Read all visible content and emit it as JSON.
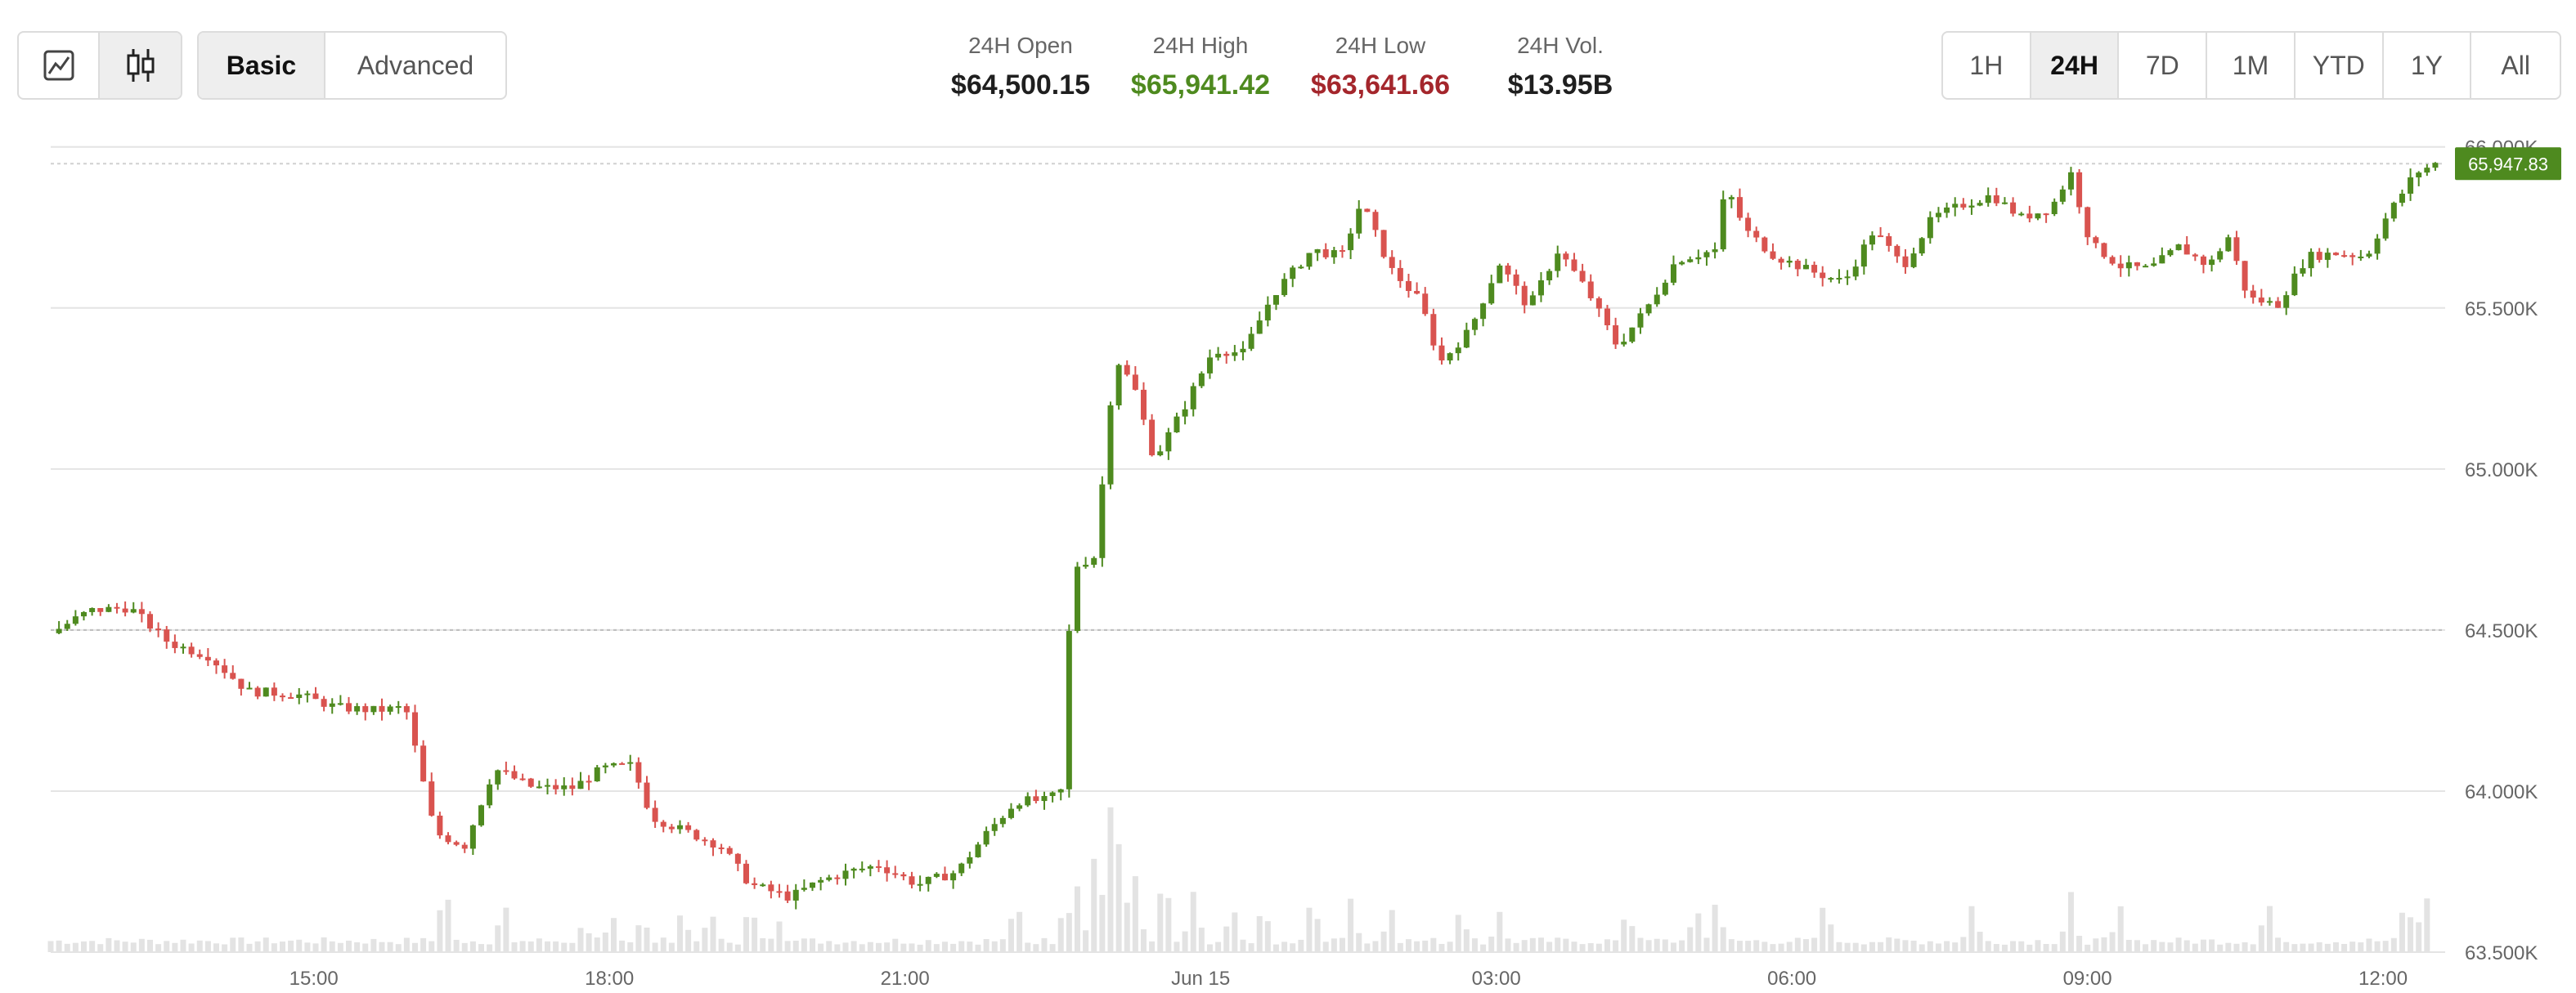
{
  "toolbar": {
    "chart_type": [
      {
        "name": "line-chart-icon",
        "active": false
      },
      {
        "name": "candlestick-icon",
        "active": true
      }
    ],
    "mode": [
      {
        "label": "Basic",
        "active": true
      },
      {
        "label": "Advanced",
        "active": false
      }
    ],
    "ranges": [
      {
        "label": "1H",
        "active": false
      },
      {
        "label": "24H",
        "active": true
      },
      {
        "label": "7D",
        "active": false
      },
      {
        "label": "1M",
        "active": false
      },
      {
        "label": "YTD",
        "active": false
      },
      {
        "label": "1Y",
        "active": false
      },
      {
        "label": "All",
        "active": false
      }
    ]
  },
  "stats": {
    "open": {
      "label": "24H Open",
      "value": "$64,500.15",
      "color": "#1f1f1f"
    },
    "high": {
      "label": "24H High",
      "value": "$65,941.42",
      "color": "#4e8a1f"
    },
    "low": {
      "label": "24H Low",
      "value": "$63,641.66",
      "color": "#a4262c"
    },
    "vol": {
      "label": "24H Vol.",
      "value": "$13.95B",
      "color": "#1f1f1f"
    }
  },
  "chart_data": {
    "type": "candlestick",
    "y_ticks": [
      63500,
      64000,
      64500,
      65000,
      65500,
      66000
    ],
    "y_tick_labels": [
      "63.500K",
      "64.000K",
      "64.500K",
      "65.000K",
      "65.500K",
      "66.000K"
    ],
    "ylim": [
      63500,
      66050
    ],
    "x_ticks": [
      "15:00",
      "18:00",
      "21:00",
      "Jun 15",
      "03:00",
      "06:00",
      "09:00",
      "12:00"
    ],
    "x_tick_positions": [
      2.67,
      5.67,
      8.67,
      11.67,
      14.67,
      17.67,
      20.67,
      23.67
    ],
    "xlim": [
      0,
      24.3
    ],
    "reference_line": 64500.15,
    "current_price": 65947.83,
    "current_price_label": "65,947.83",
    "up_color": "#4e8a1f",
    "down_color": "#d9534f",
    "volume_color": "#e3e3e3",
    "grid": true,
    "price_path": [
      [
        0.0,
        64490
      ],
      [
        0.4,
        64560
      ],
      [
        0.8,
        64570
      ],
      [
        1.2,
        64460
      ],
      [
        1.6,
        64420
      ],
      [
        2.0,
        64310
      ],
      [
        2.5,
        64300
      ],
      [
        2.9,
        64260
      ],
      [
        3.3,
        64250
      ],
      [
        3.6,
        64260
      ],
      [
        3.9,
        63870
      ],
      [
        4.2,
        63830
      ],
      [
        4.5,
        64070
      ],
      [
        4.9,
        64010
      ],
      [
        5.3,
        64010
      ],
      [
        5.6,
        64070
      ],
      [
        5.9,
        64080
      ],
      [
        6.1,
        63920
      ],
      [
        6.4,
        63880
      ],
      [
        6.8,
        63830
      ],
      [
        7.1,
        63710
      ],
      [
        7.5,
        63670
      ],
      [
        7.8,
        63720
      ],
      [
        8.1,
        63750
      ],
      [
        8.4,
        63770
      ],
      [
        8.8,
        63710
      ],
      [
        9.2,
        63750
      ],
      [
        9.5,
        63870
      ],
      [
        9.8,
        63970
      ],
      [
        10.1,
        63970
      ],
      [
        10.3,
        64010
      ],
      [
        10.35,
        64690
      ],
      [
        10.6,
        64730
      ],
      [
        10.8,
        65350
      ],
      [
        11.0,
        65250
      ],
      [
        11.2,
        65030
      ],
      [
        11.5,
        65190
      ],
      [
        11.8,
        65370
      ],
      [
        12.1,
        65360
      ],
      [
        12.4,
        65540
      ],
      [
        12.8,
        65680
      ],
      [
        13.1,
        65660
      ],
      [
        13.3,
        65830
      ],
      [
        13.6,
        65620
      ],
      [
        13.9,
        65520
      ],
      [
        14.1,
        65330
      ],
      [
        14.4,
        65430
      ],
      [
        14.7,
        65640
      ],
      [
        15.0,
        65500
      ],
      [
        15.3,
        65680
      ],
      [
        15.6,
        65550
      ],
      [
        15.9,
        65380
      ],
      [
        16.2,
        65500
      ],
      [
        16.5,
        65650
      ],
      [
        16.9,
        65680
      ],
      [
        17.0,
        65880
      ],
      [
        17.2,
        65740
      ],
      [
        17.5,
        65660
      ],
      [
        17.9,
        65610
      ],
      [
        18.2,
        65580
      ],
      [
        18.5,
        65740
      ],
      [
        18.8,
        65630
      ],
      [
        19.1,
        65780
      ],
      [
        19.4,
        65820
      ],
      [
        19.7,
        65850
      ],
      [
        20.0,
        65780
      ],
      [
        20.3,
        65810
      ],
      [
        20.5,
        65920
      ],
      [
        20.7,
        65700
      ],
      [
        21.0,
        65630
      ],
      [
        21.3,
        65620
      ],
      [
        21.6,
        65690
      ],
      [
        21.9,
        65630
      ],
      [
        22.1,
        65720
      ],
      [
        22.3,
        65530
      ],
      [
        22.6,
        65510
      ],
      [
        22.9,
        65660
      ],
      [
        23.2,
        65670
      ],
      [
        23.5,
        65660
      ],
      [
        23.7,
        65780
      ],
      [
        24.0,
        65920
      ],
      [
        24.2,
        65947
      ]
    ],
    "volume_spikes": [
      [
        4.0,
        3.1
      ],
      [
        4.6,
        2.2
      ],
      [
        5.4,
        1.3
      ],
      [
        5.7,
        1.6
      ],
      [
        6.0,
        1.6
      ],
      [
        6.4,
        1.8
      ],
      [
        6.7,
        2.0
      ],
      [
        7.1,
        2.2
      ],
      [
        7.4,
        1.5
      ],
      [
        9.8,
        2.3
      ],
      [
        10.3,
        2.6
      ],
      [
        10.4,
        3.5
      ],
      [
        10.6,
        4.6
      ],
      [
        10.75,
        7.0
      ],
      [
        10.85,
        5.4
      ],
      [
        11.0,
        3.5
      ],
      [
        11.3,
        3.7
      ],
      [
        11.6,
        2.8
      ],
      [
        12.0,
        2.1
      ],
      [
        12.3,
        2.3
      ],
      [
        12.8,
        2.6
      ],
      [
        13.2,
        2.4
      ],
      [
        13.6,
        2.1
      ],
      [
        14.3,
        2.0
      ],
      [
        14.7,
        1.9
      ],
      [
        16.0,
        2.0
      ],
      [
        16.7,
        2.0
      ],
      [
        16.9,
        2.4
      ],
      [
        18.0,
        2.3
      ],
      [
        19.5,
        2.2
      ],
      [
        20.5,
        2.6
      ],
      [
        21.0,
        2.0
      ],
      [
        22.5,
        2.4
      ],
      [
        23.9,
        2.5
      ],
      [
        24.1,
        2.7
      ],
      [
        24.2,
        2.3
      ]
    ]
  }
}
